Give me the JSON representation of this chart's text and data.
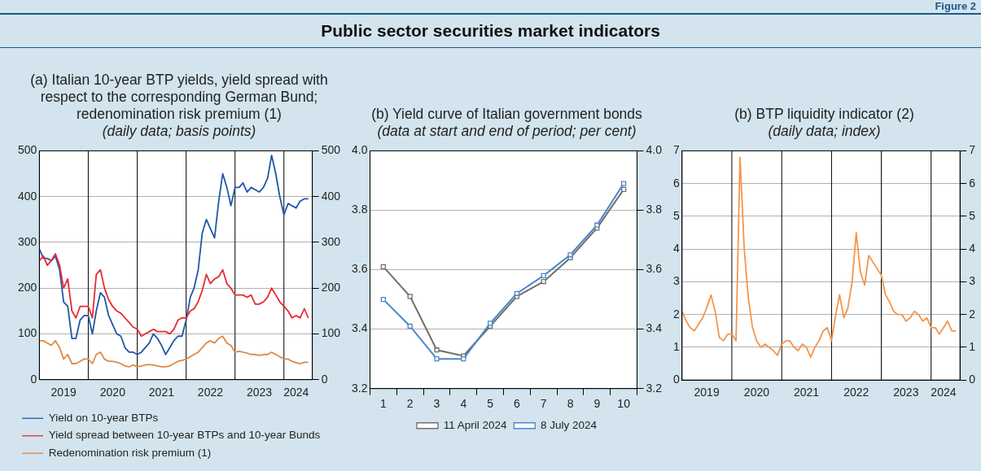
{
  "chart_data": [
    {
      "type": "line",
      "title": "(a) Italian 10-year BTP yields, yield spread with respect to the corresponding German Bund; redenomination risk premium (1)",
      "subtitle": "(daily data; basis points)",
      "annotations": [
        "Public sector securities market indicators",
        "Figure 2"
      ],
      "x": [
        "2019-01",
        "2019-02",
        "2019-03",
        "2019-04",
        "2019-05",
        "2019-06",
        "2019-07",
        "2019-08",
        "2019-09",
        "2019-10",
        "2019-11",
        "2019-12",
        "2020-01",
        "2020-02",
        "2020-03",
        "2020-04",
        "2020-05",
        "2020-06",
        "2020-07",
        "2020-08",
        "2020-09",
        "2020-10",
        "2020-11",
        "2020-12",
        "2021-01",
        "2021-02",
        "2021-03",
        "2021-04",
        "2021-05",
        "2021-06",
        "2021-07",
        "2021-08",
        "2021-09",
        "2021-10",
        "2021-11",
        "2021-12",
        "2022-01",
        "2022-02",
        "2022-03",
        "2022-04",
        "2022-05",
        "2022-06",
        "2022-07",
        "2022-08",
        "2022-09",
        "2022-10",
        "2022-11",
        "2022-12",
        "2023-01",
        "2023-02",
        "2023-03",
        "2023-04",
        "2023-05",
        "2023-06",
        "2023-07",
        "2023-08",
        "2023-09",
        "2023-10",
        "2023-11",
        "2023-12",
        "2024-01",
        "2024-02",
        "2024-03",
        "2024-04",
        "2024-05",
        "2024-06",
        "2024-07"
      ],
      "series": [
        {
          "name": "Yield on 10-year BTPs",
          "color": "#1f57a8",
          "values": [
            285,
            265,
            265,
            260,
            270,
            240,
            170,
            160,
            90,
            90,
            130,
            140,
            140,
            100,
            150,
            190,
            180,
            140,
            120,
            100,
            95,
            70,
            60,
            60,
            55,
            60,
            70,
            80,
            100,
            90,
            75,
            55,
            70,
            85,
            95,
            95,
            130,
            180,
            200,
            240,
            320,
            350,
            330,
            310,
            390,
            450,
            420,
            380,
            420,
            420,
            430,
            410,
            420,
            415,
            410,
            420,
            440,
            490,
            450,
            400,
            360,
            385,
            380,
            375,
            390,
            395,
            395
          ]
        },
        {
          "name": "Yield spread between 10-year BTPs and 10-year Bunds",
          "color": "#e8292e",
          "values": [
            260,
            270,
            250,
            260,
            275,
            250,
            200,
            220,
            150,
            135,
            160,
            160,
            160,
            135,
            230,
            240,
            200,
            175,
            160,
            150,
            145,
            135,
            125,
            115,
            110,
            95,
            100,
            105,
            110,
            105,
            105,
            105,
            100,
            110,
            130,
            135,
            135,
            150,
            155,
            170,
            195,
            230,
            210,
            220,
            225,
            240,
            210,
            200,
            185,
            185,
            185,
            180,
            185,
            165,
            165,
            170,
            180,
            200,
            185,
            170,
            160,
            150,
            135,
            140,
            135,
            155,
            135
          ]
        },
        {
          "name": "Redenomination risk premium (1)",
          "color": "#dd8a45",
          "values": [
            85,
            85,
            80,
            75,
            85,
            70,
            45,
            55,
            35,
            35,
            40,
            45,
            45,
            35,
            55,
            60,
            45,
            40,
            40,
            38,
            35,
            30,
            28,
            32,
            28,
            30,
            32,
            33,
            32,
            30,
            28,
            28,
            30,
            35,
            40,
            42,
            45,
            50,
            55,
            60,
            70,
            80,
            85,
            80,
            90,
            95,
            80,
            75,
            60,
            62,
            60,
            58,
            55,
            55,
            53,
            55,
            55,
            60,
            55,
            50,
            45,
            45,
            40,
            37,
            35,
            38,
            38
          ]
        }
      ],
      "xlim": [
        "2019-01-01",
        "2024-07-31"
      ],
      "xticks": [
        {
          "value": "2019-07-01",
          "label": "2019"
        },
        {
          "value": "2020-07-01",
          "label": "2020"
        },
        {
          "value": "2021-07-01",
          "label": "2021"
        },
        {
          "value": "2022-07-01",
          "label": "2022"
        },
        {
          "value": "2023-07-01",
          "label": "2023"
        },
        {
          "value": "2024-04-01",
          "label": "2024"
        }
      ],
      "ylim": [
        0,
        500
      ],
      "yticks": [
        0,
        100,
        200,
        300,
        400,
        500
      ],
      "y2lim": [
        0,
        500
      ],
      "y2ticks": [
        0,
        100,
        200,
        300,
        400,
        500
      ],
      "ref_lines": [
        {
          "axis": "x",
          "value": "2020-01-01",
          "color": "#000000"
        },
        {
          "axis": "x",
          "value": "2021-01-01",
          "color": "#000000"
        },
        {
          "axis": "x",
          "value": "2022-01-01",
          "color": "#000000"
        },
        {
          "axis": "x",
          "value": "2023-01-01",
          "color": "#000000"
        },
        {
          "axis": "x",
          "value": "2024-01-01",
          "color": "#000000"
        }
      ],
      "grid": "y",
      "legend": "bottom",
      "marker": "none"
    },
    {
      "type": "line",
      "title": "(b) Yield curve of Italian government bonds",
      "subtitle": "(data at start and end of period; per cent)",
      "categories": [
        "1",
        "2",
        "3",
        "4",
        "5",
        "6",
        "7",
        "8",
        "9",
        "10"
      ],
      "series": [
        {
          "name": "11 April 2024",
          "color": "#6e6e6e",
          "values": [
            3.61,
            3.51,
            3.33,
            3.31,
            3.41,
            3.51,
            3.56,
            3.64,
            3.74,
            3.87
          ]
        },
        {
          "name": "8 July 2024",
          "color": "#4a86c8",
          "values": [
            3.5,
            3.41,
            3.3,
            3.3,
            3.42,
            3.52,
            3.58,
            3.65,
            3.75,
            3.89
          ]
        }
      ],
      "ylim": [
        3.2,
        4.0
      ],
      "yticks": [
        {
          "value": 3.2,
          "label": "3.2"
        },
        {
          "value": 3.4,
          "label": "3.4"
        },
        {
          "value": 3.6,
          "label": "3.6"
        },
        {
          "value": 3.8,
          "label": "3.8"
        },
        {
          "value": 4.0,
          "label": "4.0"
        }
      ],
      "y2lim": [
        3.2,
        4.0
      ],
      "y2ticks": [
        {
          "value": 3.2,
          "label": "3.2"
        },
        {
          "value": 3.4,
          "label": "3.4"
        },
        {
          "value": 3.6,
          "label": "3.6"
        },
        {
          "value": 3.8,
          "label": "3.8"
        },
        {
          "value": 4.0,
          "label": "4.0"
        }
      ],
      "grid": "y",
      "legend": "bottom",
      "marker": "square"
    },
    {
      "type": "line",
      "title": "(b) BTP liquidity indicator (2)",
      "subtitle": "(daily data; index)",
      "x": [
        "2019-01",
        "2019-02",
        "2019-03",
        "2019-04",
        "2019-05",
        "2019-06",
        "2019-07",
        "2019-08",
        "2019-09",
        "2019-10",
        "2019-11",
        "2019-12",
        "2020-01",
        "2020-02",
        "2020-03",
        "2020-04",
        "2020-05",
        "2020-06",
        "2020-07",
        "2020-08",
        "2020-09",
        "2020-10",
        "2020-11",
        "2020-12",
        "2021-01",
        "2021-02",
        "2021-03",
        "2021-04",
        "2021-05",
        "2021-06",
        "2021-07",
        "2021-08",
        "2021-09",
        "2021-10",
        "2021-11",
        "2021-12",
        "2022-01",
        "2022-02",
        "2022-03",
        "2022-04",
        "2022-05",
        "2022-06",
        "2022-07",
        "2022-08",
        "2022-09",
        "2022-10",
        "2022-11",
        "2022-12",
        "2023-01",
        "2023-02",
        "2023-03",
        "2023-04",
        "2023-05",
        "2023-06",
        "2023-07",
        "2023-08",
        "2023-09",
        "2023-10",
        "2023-11",
        "2023-12",
        "2024-01",
        "2024-02",
        "2024-03",
        "2024-04",
        "2024-05",
        "2024-06",
        "2024-07"
      ],
      "series": [
        {
          "color": "#f5954a",
          "values": [
            2.1,
            1.8,
            1.6,
            1.5,
            1.7,
            1.9,
            2.2,
            2.6,
            2.1,
            1.3,
            1.2,
            1.4,
            1.4,
            1.2,
            6.8,
            4.0,
            2.5,
            1.6,
            1.2,
            1.0,
            1.1,
            1.0,
            0.9,
            0.75,
            1.1,
            1.2,
            1.2,
            1.0,
            0.9,
            1.1,
            1.0,
            0.7,
            1.0,
            1.2,
            1.5,
            1.6,
            1.2,
            2.0,
            2.6,
            1.9,
            2.2,
            3.0,
            4.5,
            3.3,
            2.9,
            3.8,
            3.6,
            3.4,
            3.2,
            2.6,
            2.4,
            2.1,
            2.0,
            2.0,
            1.8,
            1.9,
            2.1,
            2.0,
            1.8,
            1.9,
            1.6,
            1.6,
            1.4,
            1.6,
            1.8,
            1.5,
            1.5
          ]
        }
      ],
      "xlim": [
        "2019-01-01",
        "2024-07-31"
      ],
      "xticks": [
        {
          "value": "2019-07-01",
          "label": "2019"
        },
        {
          "value": "2020-07-01",
          "label": "2020"
        },
        {
          "value": "2021-07-01",
          "label": "2021"
        },
        {
          "value": "2022-07-01",
          "label": "2022"
        },
        {
          "value": "2023-07-01",
          "label": "2023"
        },
        {
          "value": "2024-04-01",
          "label": "2024"
        }
      ],
      "ylim": [
        0,
        7
      ],
      "yticks": [
        0,
        1,
        2,
        3,
        4,
        5,
        6,
        7
      ],
      "y2lim": [
        0,
        7
      ],
      "y2ticks": [
        0,
        1,
        2,
        3,
        4,
        5,
        6,
        7
      ],
      "ref_lines": [
        {
          "axis": "x",
          "value": "2020-01-01",
          "color": "#000000"
        },
        {
          "axis": "x",
          "value": "2021-01-01",
          "color": "#000000"
        },
        {
          "axis": "x",
          "value": "2022-01-01",
          "color": "#000000"
        },
        {
          "axis": "x",
          "value": "2023-01-01",
          "color": "#000000"
        },
        {
          "axis": "x",
          "value": "2024-01-01",
          "color": "#000000"
        }
      ],
      "grid": "y",
      "marker": "none"
    }
  ]
}
